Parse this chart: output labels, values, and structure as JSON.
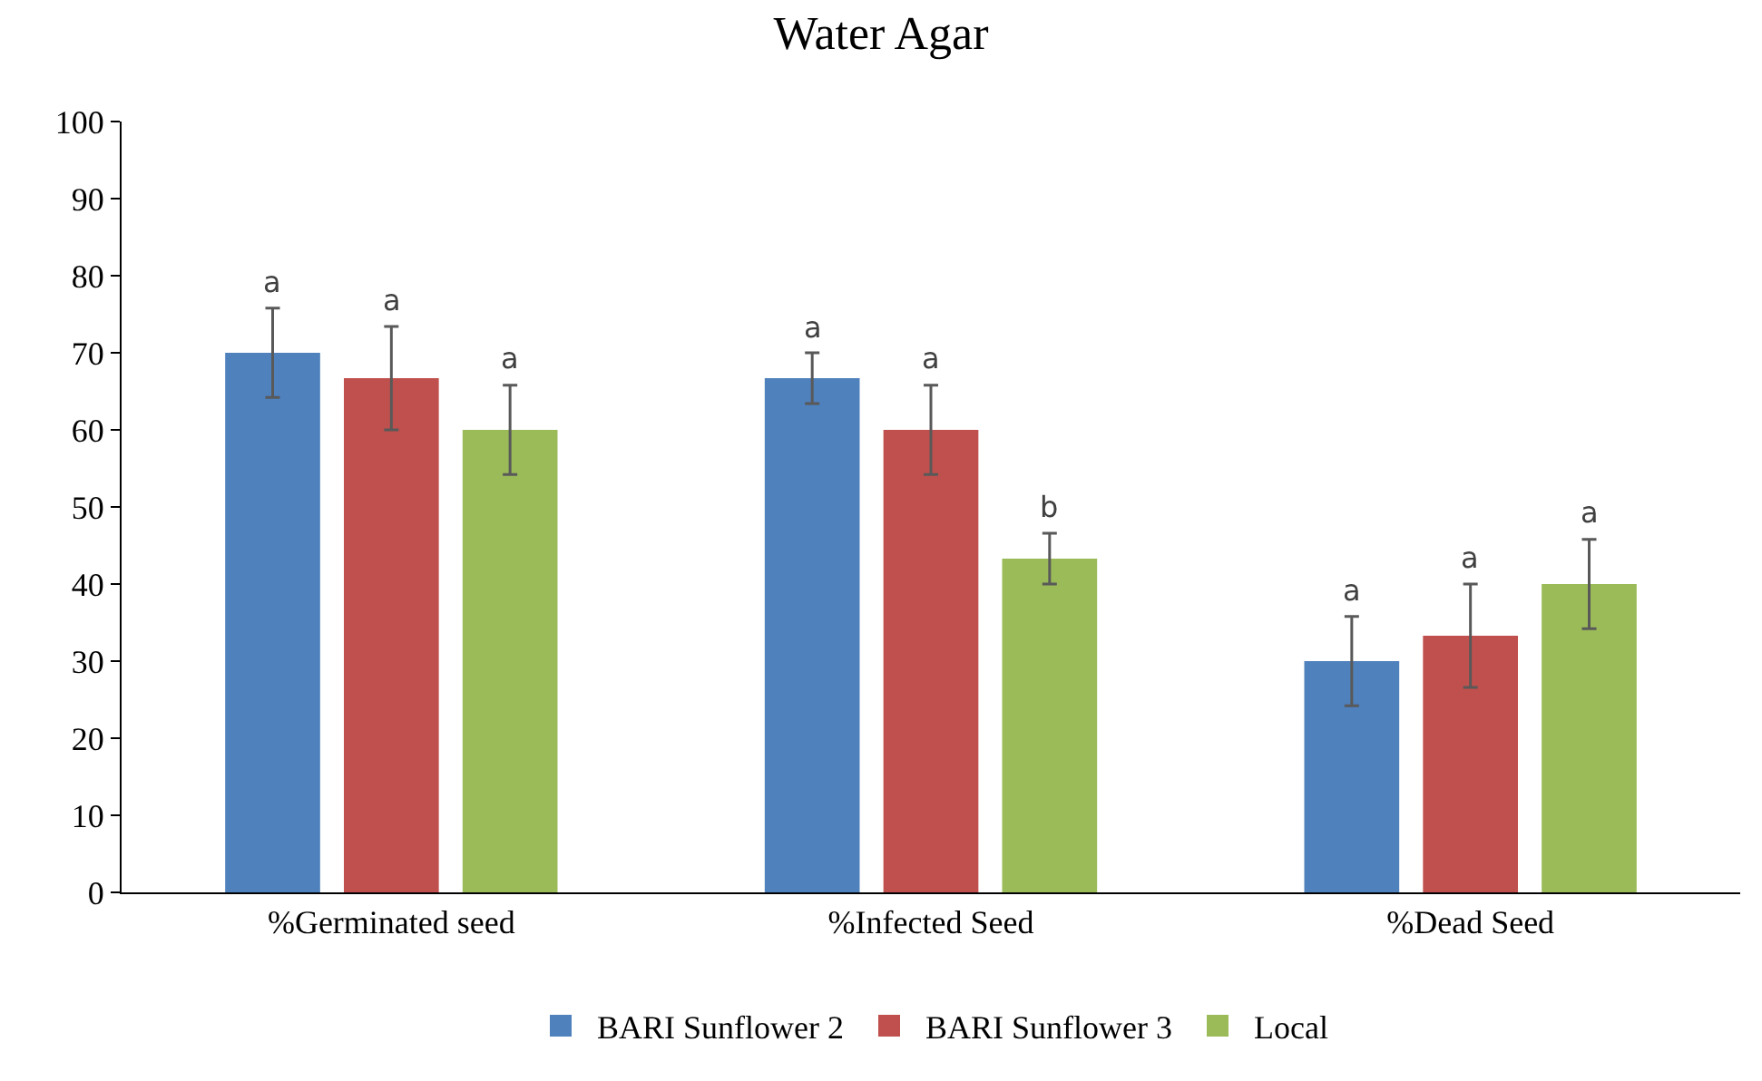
{
  "chart_data": {
    "type": "bar",
    "title": "Water Agar",
    "categories": [
      "%Germinated seed",
      "%Infected Seed",
      "%Dead Seed"
    ],
    "series": [
      {
        "name": "BARI Sunflower 2",
        "color": "#4f81bd",
        "values": [
          70,
          66.7,
          30
        ],
        "errors": [
          5.8,
          3.3,
          5.8
        ],
        "value_labels": [
          "a",
          "a",
          "a"
        ]
      },
      {
        "name": "BARI Sunflower 3",
        "color": "#c0504d",
        "values": [
          66.7,
          60,
          33.3
        ],
        "errors": [
          6.7,
          5.8,
          6.7
        ],
        "value_labels": [
          "a",
          "a",
          "a"
        ]
      },
      {
        "name": "Local",
        "color": "#9bbb59",
        "values": [
          60,
          43.3,
          40
        ],
        "errors": [
          5.8,
          3.3,
          5.8
        ],
        "value_labels": [
          "a",
          "b",
          "a"
        ]
      }
    ],
    "ylim": [
      0,
      100
    ],
    "yticks": [
      0,
      10,
      20,
      30,
      40,
      50,
      60,
      70,
      80,
      90,
      100
    ],
    "grid": false,
    "legend": "bottom"
  }
}
